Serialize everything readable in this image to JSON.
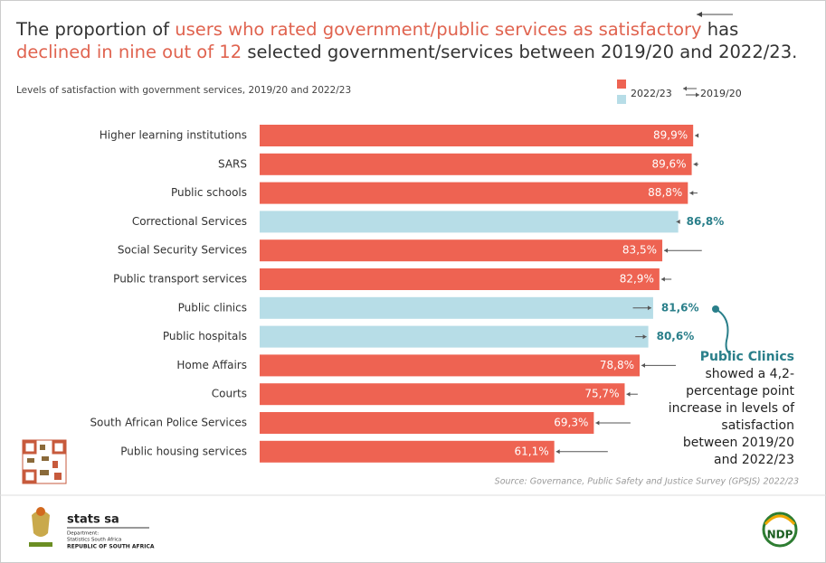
{
  "chart_data": {
    "type": "bar",
    "orientation": "horizontal",
    "title_parts": [
      {
        "text": "The proportion of ",
        "color": "#333333"
      },
      {
        "text": "users who rated government/public services as satisfactory",
        "color": "#e0634f"
      },
      {
        "text": " has ",
        "color": "#333333"
      },
      {
        "text": "declined in nine out of 12",
        "color": "#e0634f"
      },
      {
        "text": " selected government/services between 2019/20 and 2022/23.",
        "color": "#333333"
      }
    ],
    "subtitle": "Levels of satisfaction with government services, 2019/20 and 2022/23",
    "categories": [
      "Higher learning institutions",
      "SARS",
      "Public schools",
      "Correctional Services",
      "Social Security Services",
      "Public transport services",
      "Public clinics",
      "Public hospitals",
      "Home Affairs",
      "Courts",
      "South African Police Services",
      "Public housing services"
    ],
    "series": [
      {
        "name": "2022/23",
        "values": [
          89.9,
          89.6,
          88.8,
          86.8,
          83.5,
          82.9,
          81.6,
          80.6,
          78.8,
          75.7,
          69.3,
          61.1
        ],
        "value_labels": [
          "89,9%",
          "89,6%",
          "88,8%",
          "86,8%",
          "83,5%",
          "82,9%",
          "81,6%",
          "80,6%",
          "78,8%",
          "75,7%",
          "69,3%",
          "61,1%"
        ],
        "colors": [
          "#ee6352",
          "#ee6352",
          "#ee6352",
          "#b7dde7",
          "#ee6352",
          "#ee6352",
          "#b7dde7",
          "#b7dde7",
          "#ee6352",
          "#ee6352",
          "#ee6352",
          "#ee6352"
        ]
      },
      {
        "name": "2019/20",
        "values": [
          91.0,
          91.0,
          90.8,
          86.5,
          91.7,
          85.4,
          77.4,
          77.9,
          86.3,
          78.4,
          76.9,
          72.2
        ],
        "color": "#555555"
      }
    ],
    "xlim": [
      0,
      100
    ],
    "annotation": [
      "Public Clinics",
      "showed a  4,2-",
      "percentage point",
      "increase in levels of",
      "satisfaction",
      "between 2019/20",
      "and 2022/23"
    ],
    "source": "Source: Governance, Public Safety and Justice Survey (GPSJS)  2022/23"
  },
  "footer": {
    "org": "stats sa",
    "dept": "Department:",
    "dept_name": "Statistics South Africa",
    "country": "REPUBLIC OF SOUTH AFRICA",
    "ndp": "NDP"
  }
}
